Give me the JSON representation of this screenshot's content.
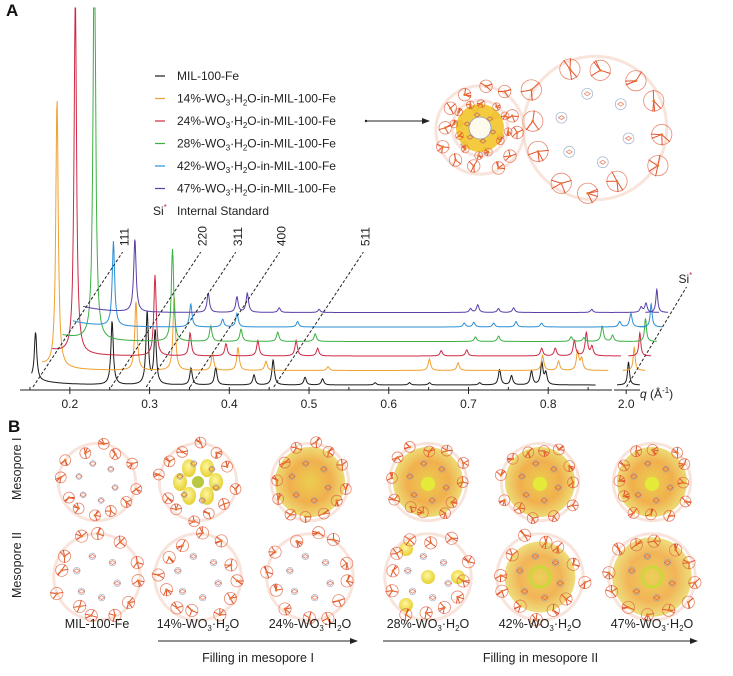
{
  "panels": {
    "a_label": "A",
    "b_label": "B"
  },
  "chart_data": {
    "type": "line",
    "title": "",
    "xlabel": "q (Å⁻¹)",
    "xlabel_italic": "q",
    "xlabel_unit": " (Å",
    "xlabel_sup": "-1",
    "xlabel_close": ")",
    "ylabel": "",
    "xlim_main": [
      0.14,
      0.88
    ],
    "xlim_break": [
      1.98,
      2.03
    ],
    "x_ticks_main": [
      0.2,
      0.3,
      0.4,
      0.5,
      0.6,
      0.7,
      0.8
    ],
    "x_tick_labels_main": [
      "0.2",
      "0.3",
      "0.4",
      "0.5",
      "0.6",
      "0.7",
      "0.8"
    ],
    "x_ticks_break": [
      2.0
    ],
    "x_tick_labels_break": [
      "2.0"
    ],
    "axis_break": true,
    "stacked_offset": true,
    "grid": false,
    "legend": {
      "placement": "top-center",
      "entries": [
        {
          "prefix": "MIL-100-Fe",
          "sub": "",
          "mid": "",
          "sub2": "",
          "suffix": "",
          "color": "#1a1a1a"
        },
        {
          "prefix": "14%-WO",
          "sub": "3",
          "mid": "·H",
          "sub2": "2",
          "suffix": "O-in-MIL-100-Fe",
          "color": "#f0a030"
        },
        {
          "prefix": "24%-WO",
          "sub": "3",
          "mid": "·H",
          "sub2": "2",
          "suffix": "O-in-MIL-100-Fe",
          "color": "#cc2a44"
        },
        {
          "prefix": "28%-WO",
          "sub": "3",
          "mid": "·H",
          "sub2": "2",
          "suffix": "O-in-MIL-100-Fe",
          "color": "#3cb043"
        },
        {
          "prefix": "42%-WO",
          "sub": "3",
          "mid": "·H",
          "sub2": "2",
          "suffix": "O-in-MIL-100-Fe",
          "color": "#2a8fd6"
        },
        {
          "prefix": "47%-WO",
          "sub": "3",
          "mid": "·H",
          "sub2": "2",
          "suffix": "O-in-MIL-100-Fe",
          "color": "#5a3fa8"
        }
      ],
      "si_symbol": "Si",
      "si_star": "*",
      "si_text": "Internal Standard",
      "si_star_color": "#cc2a44"
    },
    "hkl_annotations": [
      {
        "label": "111",
        "q": 0.155
      },
      {
        "label": "220",
        "q": 0.253
      },
      {
        "label": "311",
        "q": 0.297
      },
      {
        "label": "400",
        "q": 0.352
      },
      {
        "label": "511",
        "q": 0.457
      }
    ],
    "si_annotation": {
      "label": "Si",
      "star": "*",
      "q": 2.005
    },
    "series": [
      {
        "name": "MIL-100-Fe",
        "color": "#1a1a1a",
        "peaks": [
          [
            0.157,
            0.62
          ],
          [
            0.253,
            0.83
          ],
          [
            0.297,
            0.95
          ],
          [
            0.307,
            0.7
          ],
          [
            0.352,
            0.22
          ],
          [
            0.383,
            0.23
          ],
          [
            0.431,
            0.13
          ],
          [
            0.455,
            0.33
          ],
          [
            0.495,
            0.1
          ],
          [
            0.517,
            0.08
          ],
          [
            0.583,
            0.03
          ],
          [
            0.626,
            0.03
          ],
          [
            0.651,
            0.03
          ],
          [
            0.714,
            0.03
          ],
          [
            0.739,
            0.2
          ],
          [
            0.754,
            0.12
          ],
          [
            0.779,
            0.18
          ],
          [
            0.792,
            0.28
          ],
          [
            0.797,
            0.15
          ]
        ],
        "si_peak": 0.3
      },
      {
        "name": "14%-WO3·H2O-in-MIL-100-Fe",
        "color": "#f0a030",
        "peaks": [
          [
            0.171,
            3.5
          ],
          [
            0.27,
            0.9
          ],
          [
            0.318,
            0.95
          ],
          [
            0.366,
            0.22
          ],
          [
            0.398,
            0.3
          ],
          [
            0.433,
            0.12
          ],
          [
            0.511,
            0.05
          ],
          [
            0.638,
            0.15
          ],
          [
            0.674,
            0.1
          ],
          [
            0.78,
            0.2
          ],
          [
            0.8,
            0.12
          ],
          [
            0.824,
            0.25
          ],
          [
            0.829,
            0.15
          ]
        ],
        "si_peak": 0.3
      },
      {
        "name": "24%-WO3·H2O-in-MIL-100-Fe",
        "color": "#cc2a44",
        "peaks": [
          [
            0.181,
            4.8
          ],
          [
            0.281,
            1.05
          ],
          [
            0.325,
            0.3
          ],
          [
            0.37,
            0.16
          ],
          [
            0.41,
            0.2
          ],
          [
            0.458,
            0.2
          ],
          [
            0.485,
            0.1
          ],
          [
            0.64,
            0.07
          ],
          [
            0.672,
            0.08
          ],
          [
            0.766,
            0.1
          ],
          [
            0.783,
            0.1
          ],
          [
            0.807,
            0.2
          ],
          [
            0.822,
            0.3
          ],
          [
            0.829,
            0.12
          ]
        ],
        "si_peak": 0.3
      },
      {
        "name": "28%-WO3·H2O-in-MIL-100-Fe",
        "color": "#3cb043",
        "peaks": [
          [
            0.192,
            5.7
          ],
          [
            0.29,
            1.2
          ],
          [
            0.338,
            0.2
          ],
          [
            0.376,
            0.16
          ],
          [
            0.422,
            0.12
          ],
          [
            0.469,
            0.1
          ],
          [
            0.67,
            0.06
          ],
          [
            0.699,
            0.07
          ],
          [
            0.79,
            0.06
          ],
          [
            0.806,
            0.05
          ],
          [
            0.829,
            0.2
          ],
          [
            0.842,
            0.08
          ]
        ],
        "si_peak": 0.3
      },
      {
        "name": "42%-WO3·H2O-in-MIL-100-Fe",
        "color": "#2a8fd6",
        "peaks": [
          [
            0.203,
            1.1
          ],
          [
            0.3,
            0.3
          ],
          [
            0.34,
            0.1
          ],
          [
            0.358,
            0.18
          ],
          [
            0.434,
            0.07
          ],
          [
            0.643,
            0.05
          ],
          [
            0.655,
            0.06
          ],
          [
            0.68,
            0.05
          ],
          [
            0.708,
            0.07
          ],
          [
            0.74,
            0.05
          ],
          [
            0.838,
            0.07
          ],
          [
            0.852,
            0.18
          ]
        ],
        "si_peak": 0.3
      },
      {
        "name": "47%-WO3·H2O-in-MIL-100-Fe",
        "color": "#5a3fa8",
        "peaks": [
          [
            0.217,
            0.95
          ],
          [
            0.309,
            0.25
          ],
          [
            0.345,
            0.2
          ],
          [
            0.358,
            0.25
          ],
          [
            0.398,
            0.06
          ],
          [
            0.448,
            0.04
          ],
          [
            0.638,
            0.05
          ],
          [
            0.647,
            0.1
          ],
          [
            0.673,
            0.05
          ],
          [
            0.692,
            0.06
          ],
          [
            0.79,
            0.04
          ],
          [
            0.852,
            0.07
          ],
          [
            0.858,
            0.12
          ]
        ],
        "si_peak": 0.3
      }
    ]
  },
  "inset_a": {
    "description": "MIL-100-Fe framework structure with yellow WO3·H2O filled in mesopore I",
    "pointer_from": "24%-WO3·H2O-in-MIL-100-Fe"
  },
  "panel_b": {
    "row_labels": [
      "Mesopore I",
      "Mesopore II"
    ],
    "columns": [
      {
        "prefix": "MIL-100-Fe",
        "sub": "",
        "mid": "",
        "sub2": "",
        "suffix": "",
        "fill_meso1": 0,
        "fill_meso2": 0
      },
      {
        "prefix": "14%-WO",
        "sub": "3",
        "mid": "·H",
        "sub2": "2",
        "suffix": "O",
        "fill_meso1": 0.35,
        "fill_meso2": 0
      },
      {
        "prefix": "24%-WO",
        "sub": "3",
        "mid": "·H",
        "sub2": "2",
        "suffix": "O",
        "fill_meso1": 1.0,
        "fill_meso2": 0
      },
      {
        "prefix": "28%-WO",
        "sub": "3",
        "mid": "·H",
        "sub2": "2",
        "suffix": "O",
        "fill_meso1": 1.0,
        "fill_meso2": 0.15
      },
      {
        "prefix": "42%-WO",
        "sub": "3",
        "mid": "·H",
        "sub2": "2",
        "suffix": "O",
        "fill_meso1": 1.0,
        "fill_meso2": 0.7
      },
      {
        "prefix": "47%-WO",
        "sub": "3",
        "mid": "·H",
        "sub2": "2",
        "suffix": "O",
        "fill_meso1": 1.0,
        "fill_meso2": 0.9
      }
    ],
    "arrows": [
      {
        "label": "Filling in mesopore I"
      },
      {
        "label": "Filling in mesopore II"
      }
    ]
  }
}
